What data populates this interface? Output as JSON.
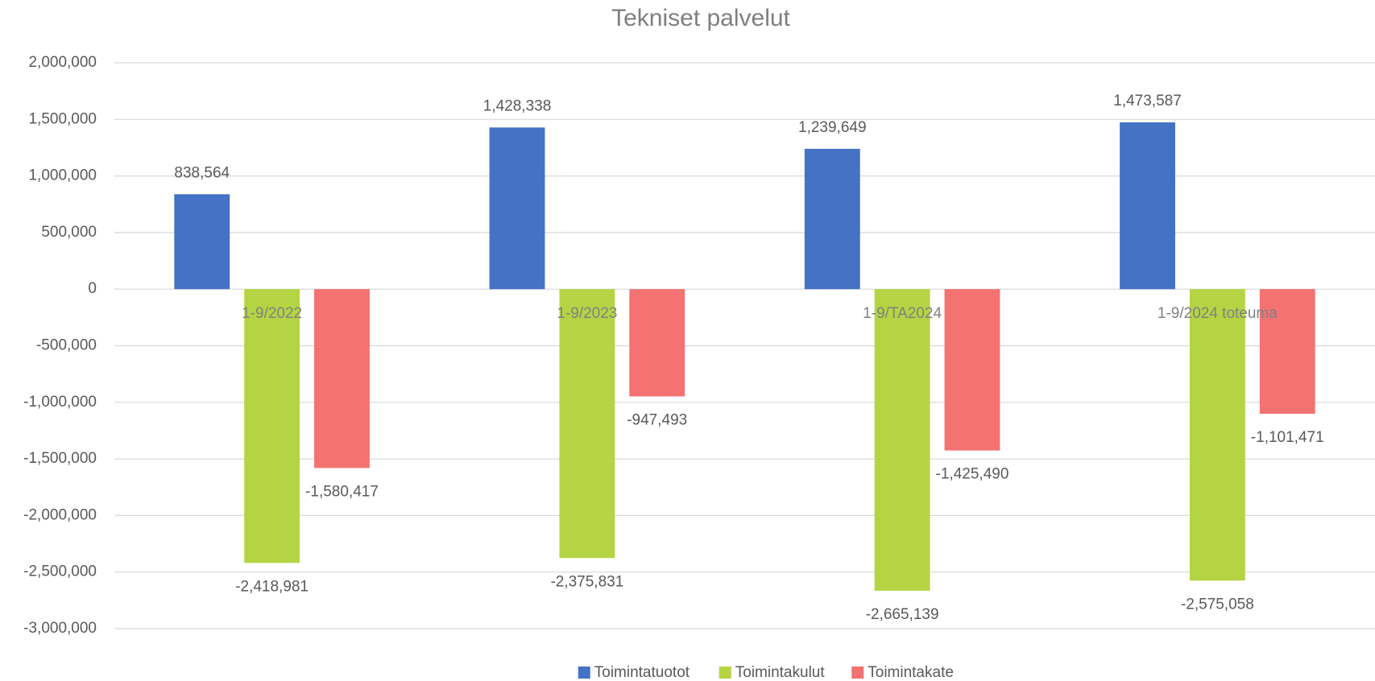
{
  "chart_data": {
    "type": "bar",
    "title": "Tekniset palvelut",
    "categories": [
      "1-9/2022",
      "1-9/2023",
      "1-9/TA2024",
      "1-9/2024 toteuma"
    ],
    "series": [
      {
        "name": "Toimintatuotot",
        "color": "#4472c4",
        "values": [
          838564,
          1428338,
          1239649,
          1473587
        ],
        "value_labels": [
          "838,564",
          "1,428,338",
          "1,239,649",
          "1,473,587"
        ]
      },
      {
        "name": "Toimintakulut",
        "color": "#b5d444",
        "values": [
          -2418981,
          -2375831,
          -2665139,
          -2575058
        ],
        "value_labels": [
          "-2,418,981",
          "-2,375,831",
          "-2,665,139",
          "-2,575,058"
        ]
      },
      {
        "name": "Toimintakate",
        "color": "#f47272",
        "values": [
          -1580417,
          -947493,
          -1425490,
          -1101471
        ],
        "value_labels": [
          "-1,580,417",
          "-947,493",
          "-1,425,490",
          "-1,101,471"
        ]
      }
    ],
    "ylim": [
      -3000000,
      2000000
    ],
    "yticks": [
      {
        "value": -3000000,
        "label": "-3,000,000"
      },
      {
        "value": -2500000,
        "label": "-2,500,000"
      },
      {
        "value": -2000000,
        "label": "-2,000,000"
      },
      {
        "value": -1500000,
        "label": "-1,500,000"
      },
      {
        "value": -1000000,
        "label": "-1,000,000"
      },
      {
        "value": -500000,
        "label": "-500,000"
      },
      0,
      {
        "value": 500000,
        "label": "500,000"
      },
      {
        "value": 1000000,
        "label": "1,000,000"
      },
      {
        "value": 1500000,
        "label": "1,500,000"
      },
      {
        "value": 2000000,
        "label": "2,000,000"
      }
    ],
    "grid": true,
    "legend": "bottom"
  }
}
